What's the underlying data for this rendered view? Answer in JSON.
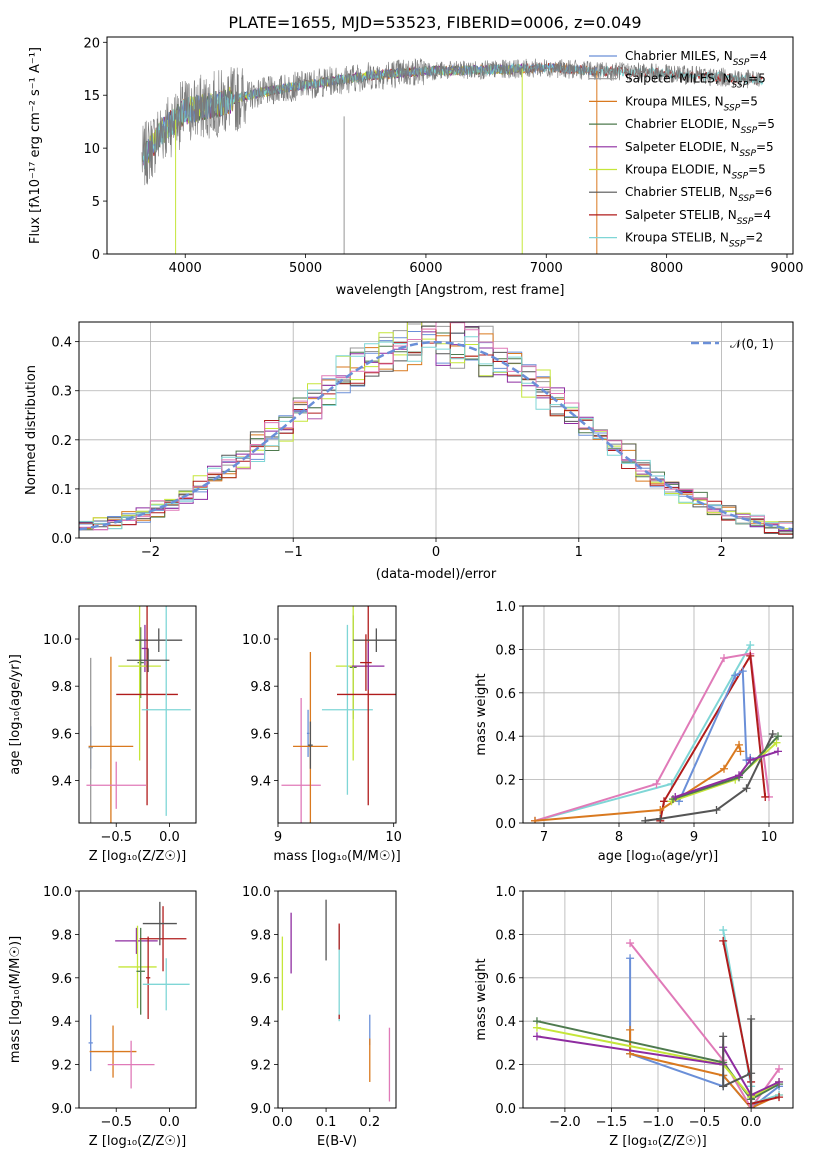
{
  "title": "PLATE=1655, MJD=53523, FIBERID=0006, z=0.049",
  "colors": {
    "Chabrier MILES": "#6a8fd8",
    "Salpeter MILES": "#9a9a9a",
    "Kroupa MILES": "#d9791f",
    "Chabrier ELODIE": "#4e7a4e",
    "Salpeter ELODIE": "#8e2ca0",
    "Kroupa ELODIE": "#c5e63a",
    "Chabrier STELIB": "#555555",
    "Salpeter STELIB": "#b01c1c",
    "Kroupa STELIB": "#7fd6d6",
    "pink": "#e07ab8",
    "normal": "#6a8fd8",
    "grid": "#b0b0b0"
  },
  "chart_data": [
    {
      "id": "spectrum",
      "type": "line",
      "title": "PLATE=1655, MJD=53523, FIBERID=0006, z=0.049",
      "xlabel": "wavelength [Angstrom, rest frame]",
      "ylabel": "Flux [fλ10⁻¹⁷ erg cm⁻² s⁻¹ A⁻¹]",
      "xlim": [
        3350,
        9050
      ],
      "ylim": [
        0,
        20.5
      ],
      "xticks": [
        4000,
        5000,
        6000,
        7000,
        8000,
        9000
      ],
      "yticks": [
        0,
        5,
        10,
        15,
        20
      ],
      "grid": false,
      "legend_position": "right",
      "legend": [
        {
          "name": "Chabrier MILES, N",
          "sub": "SSP",
          "suffix": "=4"
        },
        {
          "name": "Salpeter MILES, N",
          "sub": "SSP",
          "suffix": "=5"
        },
        {
          "name": "Kroupa MILES, N",
          "sub": "SSP",
          "suffix": "=5"
        },
        {
          "name": "Chabrier ELODIE, N",
          "sub": "SSP",
          "suffix": "=5"
        },
        {
          "name": "Salpeter ELODIE, N",
          "sub": "SSP",
          "suffix": "=5"
        },
        {
          "name": "Kroupa ELODIE, N",
          "sub": "SSP",
          "suffix": "=5"
        },
        {
          "name": "Chabrier STELIB, N",
          "sub": "SSP",
          "suffix": "=6"
        },
        {
          "name": "Salpeter STELIB, N",
          "sub": "SSP",
          "suffix": "=4"
        },
        {
          "name": "Kroupa STELIB, N",
          "sub": "SSP",
          "suffix": "=2"
        }
      ],
      "continuum": {
        "x": [
          3650,
          3800,
          4000,
          4300,
          4600,
          5000,
          5500,
          6000,
          6500,
          7000,
          7400,
          7800,
          8200,
          8600,
          8800
        ],
        "y": [
          9.0,
          11.5,
          13.5,
          14.3,
          15.2,
          16.0,
          16.8,
          17.3,
          17.4,
          17.6,
          17.3,
          17.2,
          16.9,
          16.6,
          16.4
        ]
      },
      "cutoffs": [
        {
          "model": "Kroupa ELODIE",
          "wavelength": 3920
        },
        {
          "model": "Kroupa ELODIE",
          "wavelength": 6800
        },
        {
          "model": "Kroupa MILES",
          "wavelength": 7420
        }
      ]
    },
    {
      "id": "residuals",
      "type": "histogram",
      "xlabel": "(data-model)/error",
      "ylabel": "Normed distribution",
      "xlim": [
        -2.5,
        2.5
      ],
      "ylim": [
        0,
        0.44
      ],
      "xticks": [
        -2,
        -1,
        0,
        1,
        2
      ],
      "yticks": [
        0.0,
        0.1,
        0.2,
        0.3,
        0.4
      ],
      "grid": true,
      "legend_position": "top-right",
      "reference_curve": {
        "name": "𝒩(0, 1)",
        "mean": 0,
        "sigma": 1
      },
      "bin_width": 0.1
    },
    {
      "id": "age_vs_Z",
      "type": "errorbar",
      "xlabel": "Z [log₁₀(Z/Z☉)]",
      "ylabel": "age  [log₁₀(age/yr)]",
      "xlim": [
        -0.85,
        0.25
      ],
      "ylim": [
        9.22,
        10.14
      ],
      "xticks": [
        -0.5,
        0.0
      ],
      "yticks": [
        9.4,
        9.6,
        9.8,
        10.0
      ],
      "grid": false,
      "points": [
        {
          "model": "Chabrier MILES",
          "x": -0.74,
          "xerr": 0.02,
          "y": 9.54,
          "yerr": 0.09
        },
        {
          "model": "Salpeter MILES",
          "x": -0.74,
          "xerr": 0.02,
          "y": 9.54,
          "yerr": 0.38
        },
        {
          "model": "Kroupa MILES",
          "x": -0.55,
          "xerr": 0.21,
          "y": 9.545,
          "yerr": 0.38
        },
        {
          "model": "Chabrier ELODIE",
          "x": -0.27,
          "xerr": 0.03,
          "y": 9.9,
          "yerr": 0.15
        },
        {
          "model": "Salpeter ELODIE",
          "x": -0.23,
          "xerr": 0.03,
          "y": 9.96,
          "yerr": 0.1
        },
        {
          "model": "Kroupa ELODIE",
          "x": -0.28,
          "xerr": 0.2,
          "y": 9.885,
          "yerr": 0.4
        },
        {
          "model": "Chabrier STELIB",
          "x": -0.1,
          "xerr": 0.22,
          "y": 9.995,
          "yerr": 0.05
        },
        {
          "model": "Salpeter STELIB",
          "x": -0.21,
          "xerr": 0.29,
          "y": 9.765,
          "yerr": 0.47
        },
        {
          "model": "Kroupa STELIB",
          "x": -0.03,
          "xerr": 0.23,
          "y": 9.7,
          "yerr": 0.45
        },
        {
          "model": "pink",
          "x": -0.5,
          "xerr": 0.28,
          "y": 9.38,
          "yerr": 0.1
        },
        {
          "model": "Chabrier STELIB",
          "x": -0.2,
          "xerr": 0.2,
          "y": 9.91,
          "yerr": 0.05
        }
      ]
    },
    {
      "id": "age_vs_mass",
      "type": "errorbar",
      "xlabel": "mass [log₁₀(M/M☉)]",
      "ylabel": "",
      "xlim": [
        9.0,
        10.02
      ],
      "ylim": [
        9.22,
        10.14
      ],
      "xticks": [
        9,
        10
      ],
      "yticks": [
        9.4,
        9.6,
        9.8,
        10.0
      ],
      "grid": false,
      "points": [
        {
          "model": "pink",
          "x": 9.2,
          "xerr": 0.17,
          "y": 9.38,
          "yerr": 0.37
        },
        {
          "model": "Chabrier MILES",
          "x": 9.26,
          "xerr": 0.01,
          "y": 9.6,
          "yerr": 0.1
        },
        {
          "model": "Kroupa MILES",
          "x": 9.28,
          "xerr": 0.15,
          "y": 9.545,
          "yerr": 0.4
        },
        {
          "model": "Chabrier STELIB",
          "x": 9.28,
          "xerr": 0.02,
          "y": 9.55,
          "yerr": 0.1
        },
        {
          "model": "Chabrier ELODIE",
          "x": 9.65,
          "xerr": 0.03,
          "y": 9.88,
          "yerr": 0.22
        },
        {
          "model": "Kroupa ELODIE",
          "x": 9.65,
          "xerr": 0.15,
          "y": 9.885,
          "yerr": 0.4
        },
        {
          "model": "Kroupa STELIB",
          "x": 9.6,
          "xerr": 0.22,
          "y": 9.7,
          "yerr": 0.36
        },
        {
          "model": "Salpeter STELIB",
          "x": 9.78,
          "xerr": 0.27,
          "y": 9.765,
          "yerr": 0.47
        },
        {
          "model": "Salpeter ELODIE",
          "x": 9.78,
          "xerr": 0.14,
          "y": 9.885,
          "yerr": 0.1
        },
        {
          "model": "Chabrier STELIB",
          "x": 9.85,
          "xerr": 0.2,
          "y": 9.995,
          "yerr": 0.05
        },
        {
          "model": "Salpeter STELIB",
          "x": 9.76,
          "xerr": 0.05,
          "y": 9.9,
          "yerr": 0.12
        }
      ]
    },
    {
      "id": "weight_vs_age",
      "type": "line",
      "xlabel": "age  [log₁₀(age/yr)]",
      "ylabel": "mass weight",
      "xlim": [
        6.72,
        10.32
      ],
      "ylim": [
        0,
        1
      ],
      "xticks": [
        7,
        8,
        9,
        10
      ],
      "yticks": [
        0.0,
        0.2,
        0.4,
        0.6,
        0.8,
        1.0
      ],
      "grid": true,
      "series": [
        {
          "model": "Kroupa STELIB",
          "x": [
            6.88,
            8.7,
            9.75
          ],
          "y": [
            0.01,
            0.18,
            0.82
          ]
        },
        {
          "model": "pink",
          "x": [
            6.88,
            8.5,
            9.4,
            9.75,
            10.0
          ],
          "y": [
            0.01,
            0.18,
            0.76,
            0.78,
            0.12
          ]
        },
        {
          "model": "Salpeter STELIB",
          "x": [
            8.55,
            8.6,
            9.75,
            9.95
          ],
          "y": [
            0.01,
            0.1,
            0.77,
            0.12
          ]
        },
        {
          "model": "Chabrier MILES",
          "x": [
            8.8,
            9.55,
            9.65,
            9.7,
            9.75
          ],
          "y": [
            0.1,
            0.68,
            0.7,
            0.29,
            0.3
          ]
        },
        {
          "model": "Kroupa MILES",
          "x": [
            6.88,
            8.55,
            9.4,
            9.6,
            9.62
          ],
          "y": [
            0.01,
            0.06,
            0.25,
            0.36,
            0.33
          ]
        },
        {
          "model": "Chabrier STELIB",
          "x": [
            8.35,
            8.55,
            9.3,
            9.7,
            10.05
          ],
          "y": [
            0.01,
            0.02,
            0.06,
            0.16,
            0.41
          ]
        },
        {
          "model": "Kroupa ELODIE",
          "x": [
            8.7,
            9.55,
            10.1
          ],
          "y": [
            0.1,
            0.2,
            0.37
          ]
        },
        {
          "model": "Chabrier ELODIE",
          "x": [
            8.72,
            9.6,
            10.12
          ],
          "y": [
            0.11,
            0.21,
            0.4
          ]
        },
        {
          "model": "Salpeter ELODIE",
          "x": [
            8.75,
            9.6,
            9.75,
            10.12
          ],
          "y": [
            0.12,
            0.22,
            0.29,
            0.33
          ]
        }
      ]
    },
    {
      "id": "mass_vs_Z",
      "type": "errorbar",
      "xlabel": "Z [log₁₀(Z/Z☉)]",
      "ylabel": "mass [log₁₀(M/M☉)]",
      "xlim": [
        -0.85,
        0.25
      ],
      "ylim": [
        9.0,
        10.0
      ],
      "xticks": [
        -0.5,
        0.0
      ],
      "yticks": [
        9.0,
        9.2,
        9.4,
        9.6,
        9.8,
        10.0
      ],
      "grid": false,
      "points": [
        {
          "model": "Chabrier MILES",
          "x": -0.74,
          "xerr": 0.02,
          "y": 9.3,
          "yerr": 0.13
        },
        {
          "model": "Kroupa MILES",
          "x": -0.53,
          "xerr": 0.22,
          "y": 9.26,
          "yerr": 0.12
        },
        {
          "model": "pink",
          "x": -0.36,
          "xerr": 0.22,
          "y": 9.2,
          "yerr": 0.11
        },
        {
          "model": "Salpeter ELODIE",
          "x": -0.31,
          "xerr": 0.2,
          "y": 9.77,
          "yerr": 0.06
        },
        {
          "model": "Kroupa ELODIE",
          "x": -0.3,
          "xerr": 0.18,
          "y": 9.65,
          "yerr": 0.19
        },
        {
          "model": "Chabrier ELODIE",
          "x": -0.27,
          "xerr": 0.04,
          "y": 9.63,
          "yerr": 0.2
        },
        {
          "model": "Salpeter STELIB",
          "x": -0.2,
          "xerr": 0.02,
          "y": 9.6,
          "yerr": 0.19
        },
        {
          "model": "Kroupa STELIB",
          "x": -0.03,
          "xerr": 0.22,
          "y": 9.57,
          "yerr": 0.12
        },
        {
          "model": "Salpeter STELIB",
          "x": -0.06,
          "xerr": 0.22,
          "y": 9.78,
          "yerr": 0.15
        },
        {
          "model": "Chabrier STELIB",
          "x": -0.09,
          "xerr": 0.16,
          "y": 9.85,
          "yerr": 0.1
        }
      ]
    },
    {
      "id": "mass_vs_ebv",
      "type": "errorbar",
      "xlabel": "E(B-V)",
      "ylabel": "",
      "xlim": [
        -0.01,
        0.26
      ],
      "ylim": [
        9.0,
        10.0
      ],
      "xticks": [
        0.0,
        0.1,
        0.2
      ],
      "yticks": [
        9.0,
        9.2,
        9.4,
        9.6,
        9.8,
        10.0
      ],
      "grid": false,
      "points": [
        {
          "model": "Kroupa ELODIE",
          "x": 0.0,
          "xerr": 0.0,
          "y": 9.62,
          "yerr": 0.17
        },
        {
          "model": "Salpeter ELODIE",
          "x": 0.02,
          "xerr": 0.0,
          "y": 9.76,
          "yerr": 0.14
        },
        {
          "model": "Chabrier STELIB",
          "x": 0.1,
          "xerr": 0.0,
          "y": 9.82,
          "yerr": 0.14
        },
        {
          "model": "Kroupa STELIB",
          "x": 0.13,
          "xerr": 0.0,
          "y": 9.62,
          "yerr": 0.22
        },
        {
          "model": "Salpeter STELIB",
          "x": 0.13,
          "xerr": 0.0,
          "y": 9.79,
          "yerr": 0.06
        },
        {
          "model": "Salpeter STELIB",
          "x": 0.13,
          "xerr": 0.0,
          "y": 9.42,
          "yerr": 0.01
        },
        {
          "model": "Chabrier MILES",
          "x": 0.2,
          "xerr": 0.0,
          "y": 9.36,
          "yerr": 0.07
        },
        {
          "model": "Kroupa MILES",
          "x": 0.2,
          "xerr": 0.0,
          "y": 9.22,
          "yerr": 0.1
        },
        {
          "model": "pink",
          "x": 0.245,
          "xerr": 0.0,
          "y": 9.2,
          "yerr": 0.17
        }
      ]
    },
    {
      "id": "weight_vs_Z",
      "type": "line",
      "xlabel": "Z [log₁₀(Z/Z☉)]",
      "ylabel": "mass weight",
      "xlim": [
        -2.45,
        0.45
      ],
      "ylim": [
        0,
        1
      ],
      "xticks": [
        -2.0,
        -1.5,
        -1.0,
        -0.5,
        0.0
      ],
      "yticks": [
        0.0,
        0.2,
        0.4,
        0.6,
        0.8,
        1.0
      ],
      "grid": true,
      "series": [
        {
          "model": "Chabrier MILES",
          "x": [
            -1.3,
            -1.3,
            -0.3,
            -0.3,
            0.0,
            0.3
          ],
          "y": [
            0.69,
            0.25,
            0.1,
            0.15,
            0.0,
            0.1
          ]
        },
        {
          "model": "Kroupa MILES",
          "x": [
            -1.3,
            -1.3,
            -0.3,
            0.0,
            0.3
          ],
          "y": [
            0.36,
            0.25,
            0.15,
            0.0,
            0.06
          ]
        },
        {
          "model": "pink",
          "x": [
            -1.3,
            -0.3,
            0.0,
            0.3
          ],
          "y": [
            0.76,
            0.22,
            0.0,
            0.18
          ]
        },
        {
          "model": "Kroupa STELIB",
          "x": [
            -0.3,
            0.0,
            0.0,
            0.3
          ],
          "y": [
            0.82,
            0.1,
            0.02,
            0.06
          ]
        },
        {
          "model": "Salpeter STELIB",
          "x": [
            -0.3,
            0.0,
            0.0,
            0.3
          ],
          "y": [
            0.77,
            0.12,
            0.02,
            0.05
          ]
        },
        {
          "model": "Chabrier ELODIE",
          "x": [
            -2.3,
            -0.3,
            0.0,
            0.3
          ],
          "y": [
            0.4,
            0.21,
            0.04,
            0.11
          ]
        },
        {
          "model": "Kroupa ELODIE",
          "x": [
            -2.3,
            -0.3,
            0.0,
            0.3
          ],
          "y": [
            0.37,
            0.2,
            0.05,
            0.12
          ]
        },
        {
          "model": "Salpeter ELODIE",
          "x": [
            -2.3,
            -0.3,
            -0.3,
            0.0,
            0.3
          ],
          "y": [
            0.33,
            0.2,
            0.28,
            0.06,
            0.12
          ]
        },
        {
          "model": "Chabrier STELIB",
          "x": [
            -0.3,
            -0.3,
            0.0,
            0.0,
            0.0
          ],
          "y": [
            0.33,
            0.1,
            0.16,
            0.41,
            0.0
          ]
        }
      ]
    }
  ]
}
